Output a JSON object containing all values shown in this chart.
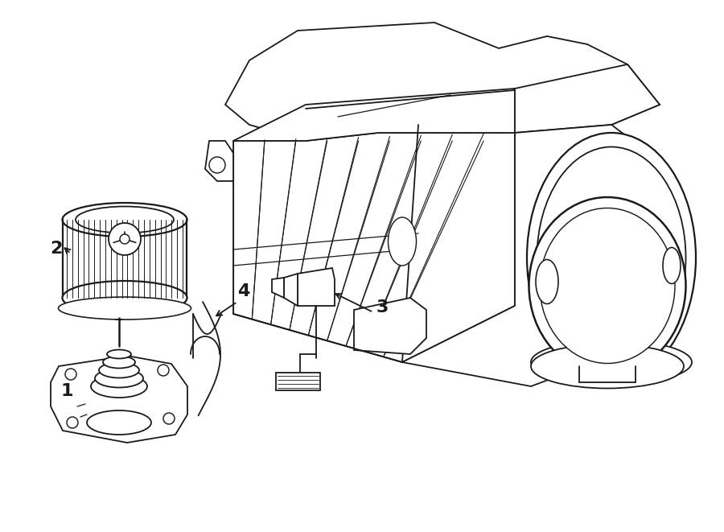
{
  "bg_color": "#ffffff",
  "line_color": "#1a1a1a",
  "line_width": 1.3,
  "fig_width": 9.0,
  "fig_height": 6.61,
  "dpi": 100
}
